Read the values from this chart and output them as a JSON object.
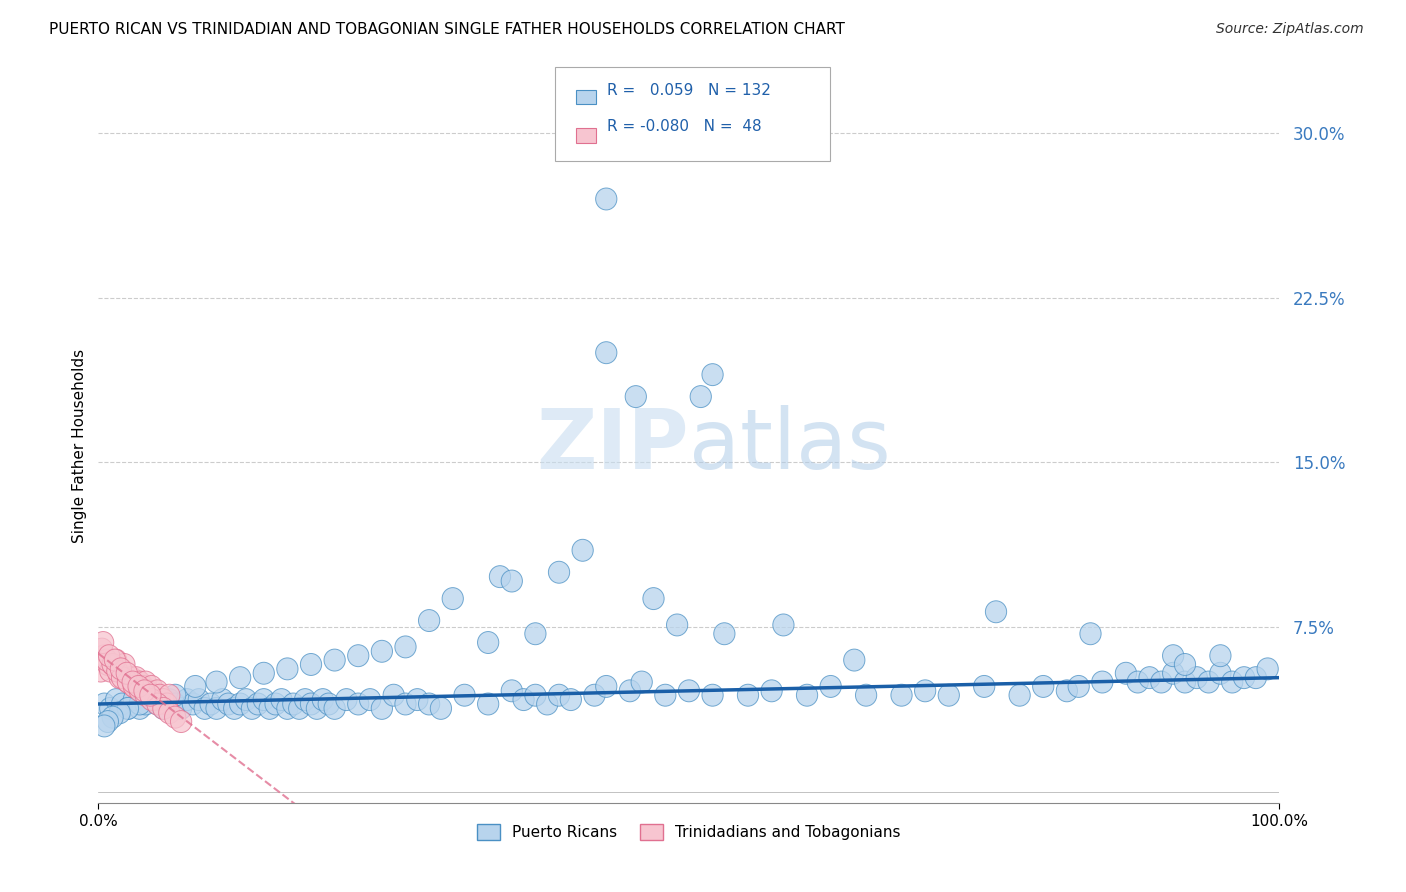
{
  "title": "PUERTO RICAN VS TRINIDADIAN AND TOBAGONIAN SINGLE FATHER HOUSEHOLDS CORRELATION CHART",
  "source": "Source: ZipAtlas.com",
  "ylabel": "Single Father Households",
  "watermark_zip": "ZIP",
  "watermark_atlas": "atlas",
  "legend_blue_label": "Puerto Ricans",
  "legend_pink_label": "Trinidadians and Tobagonians",
  "r_blue": 0.059,
  "n_blue": 132,
  "r_pink": -0.08,
  "n_pink": 48,
  "blue_color": "#b8d4ed",
  "blue_edge_color": "#4a90c4",
  "blue_line_color": "#1a5fa8",
  "pink_color": "#f7c5d0",
  "pink_edge_color": "#e07090",
  "pink_line_color": "#e07090",
  "ytick_labels": [
    "7.5%",
    "15.0%",
    "22.5%",
    "30.0%"
  ],
  "ytick_values": [
    0.075,
    0.15,
    0.225,
    0.3
  ],
  "xlim": [
    0.0,
    1.0
  ],
  "ylim": [
    -0.005,
    0.32
  ],
  "background_color": "#ffffff",
  "grid_color": "#cccccc",
  "blue_scatter_x": [
    0.005,
    0.01,
    0.015,
    0.02,
    0.025,
    0.03,
    0.035,
    0.04,
    0.045,
    0.05,
    0.055,
    0.06,
    0.065,
    0.07,
    0.075,
    0.08,
    0.085,
    0.09,
    0.095,
    0.1,
    0.105,
    0.11,
    0.115,
    0.12,
    0.125,
    0.13,
    0.135,
    0.14,
    0.145,
    0.15,
    0.155,
    0.16,
    0.165,
    0.17,
    0.175,
    0.18,
    0.185,
    0.19,
    0.195,
    0.2,
    0.21,
    0.22,
    0.23,
    0.24,
    0.25,
    0.26,
    0.27,
    0.28,
    0.29,
    0.31,
    0.33,
    0.35,
    0.36,
    0.37,
    0.38,
    0.39,
    0.4,
    0.42,
    0.43,
    0.45,
    0.46,
    0.48,
    0.5,
    0.52,
    0.55,
    0.57,
    0.6,
    0.62,
    0.65,
    0.68,
    0.7,
    0.72,
    0.75,
    0.78,
    0.8,
    0.82,
    0.83,
    0.85,
    0.87,
    0.88,
    0.89,
    0.9,
    0.91,
    0.92,
    0.93,
    0.94,
    0.95,
    0.96,
    0.97,
    0.98,
    0.99,
    0.34,
    0.41,
    0.47,
    0.53,
    0.58,
    0.64,
    0.76,
    0.84,
    0.95,
    0.43,
    0.52,
    0.43,
    0.51,
    0.39,
    0.35,
    0.3,
    0.28,
    0.49,
    0.455,
    0.37,
    0.33,
    0.26,
    0.24,
    0.22,
    0.2,
    0.18,
    0.16,
    0.14,
    0.12,
    0.1,
    0.082,
    0.065,
    0.048,
    0.035,
    0.025,
    0.018,
    0.012,
    0.008,
    0.005,
    0.91,
    0.92
  ],
  "blue_scatter_y": [
    0.04,
    0.038,
    0.042,
    0.04,
    0.038,
    0.042,
    0.038,
    0.04,
    0.042,
    0.04,
    0.038,
    0.042,
    0.04,
    0.038,
    0.042,
    0.04,
    0.042,
    0.038,
    0.04,
    0.038,
    0.042,
    0.04,
    0.038,
    0.04,
    0.042,
    0.038,
    0.04,
    0.042,
    0.038,
    0.04,
    0.042,
    0.038,
    0.04,
    0.038,
    0.042,
    0.04,
    0.038,
    0.042,
    0.04,
    0.038,
    0.042,
    0.04,
    0.042,
    0.038,
    0.044,
    0.04,
    0.042,
    0.04,
    0.038,
    0.044,
    0.04,
    0.046,
    0.042,
    0.044,
    0.04,
    0.044,
    0.042,
    0.044,
    0.048,
    0.046,
    0.05,
    0.044,
    0.046,
    0.044,
    0.044,
    0.046,
    0.044,
    0.048,
    0.044,
    0.044,
    0.046,
    0.044,
    0.048,
    0.044,
    0.048,
    0.046,
    0.048,
    0.05,
    0.054,
    0.05,
    0.052,
    0.05,
    0.054,
    0.05,
    0.052,
    0.05,
    0.054,
    0.05,
    0.052,
    0.052,
    0.056,
    0.098,
    0.11,
    0.088,
    0.072,
    0.076,
    0.06,
    0.082,
    0.072,
    0.062,
    0.2,
    0.19,
    0.27,
    0.18,
    0.1,
    0.096,
    0.088,
    0.078,
    0.076,
    0.18,
    0.072,
    0.068,
    0.066,
    0.064,
    0.062,
    0.06,
    0.058,
    0.056,
    0.054,
    0.052,
    0.05,
    0.048,
    0.044,
    0.042,
    0.04,
    0.038,
    0.036,
    0.034,
    0.032,
    0.03,
    0.062,
    0.058
  ],
  "pink_scatter_x": [
    0.002,
    0.005,
    0.008,
    0.01,
    0.012,
    0.015,
    0.018,
    0.02,
    0.022,
    0.025,
    0.028,
    0.03,
    0.032,
    0.035,
    0.038,
    0.04,
    0.042,
    0.045,
    0.048,
    0.05,
    0.052,
    0.055,
    0.058,
    0.06,
    0.003,
    0.007,
    0.012,
    0.016,
    0.02,
    0.025,
    0.03,
    0.035,
    0.04,
    0.045,
    0.05,
    0.055,
    0.06,
    0.065,
    0.07,
    0.004,
    0.009,
    0.014,
    0.019,
    0.024,
    0.029,
    0.034,
    0.039,
    0.044
  ],
  "pink_scatter_y": [
    0.055,
    0.062,
    0.058,
    0.055,
    0.058,
    0.06,
    0.052,
    0.055,
    0.058,
    0.05,
    0.052,
    0.048,
    0.052,
    0.05,
    0.048,
    0.05,
    0.046,
    0.048,
    0.044,
    0.046,
    0.044,
    0.042,
    0.04,
    0.044,
    0.065,
    0.06,
    0.058,
    0.055,
    0.052,
    0.05,
    0.048,
    0.046,
    0.044,
    0.042,
    0.04,
    0.038,
    0.036,
    0.034,
    0.032,
    0.068,
    0.062,
    0.06,
    0.056,
    0.054,
    0.05,
    0.048,
    0.046,
    0.044
  ]
}
